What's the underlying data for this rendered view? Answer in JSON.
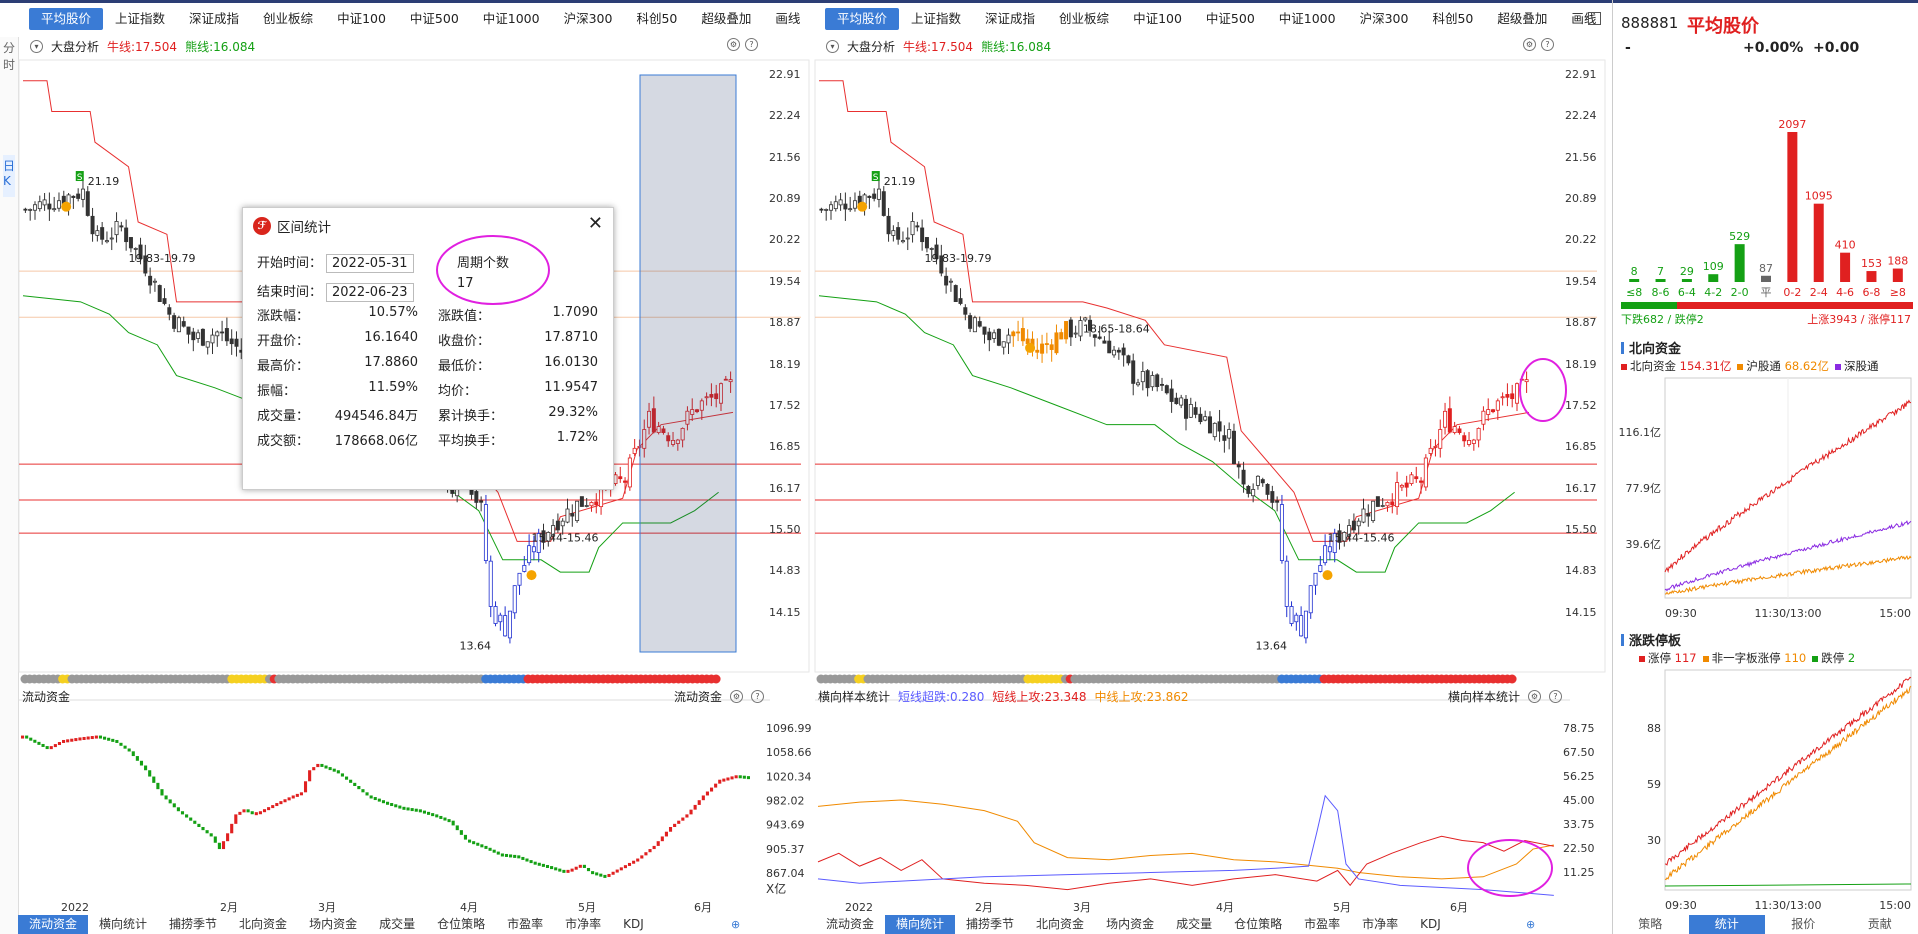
{
  "top_tabs": [
    "平均股价",
    "上证指数",
    "深证成指",
    "创业板综",
    "中证100",
    "中证500",
    "中证1000",
    "沪深300",
    "科创50",
    "超级叠加",
    "画线"
  ],
  "side_labels": [
    "分",
    "时",
    "日",
    "K"
  ],
  "left_chart": {
    "analysis_label": "大盘分析",
    "niu_line": "牛线:17.504",
    "xiong_line": "熊线:16.084",
    "price_ticks": [
      "22.91",
      "22.24",
      "21.56",
      "20.89",
      "20.22",
      "19.54",
      "18.87",
      "18.19",
      "17.52",
      "16.85",
      "16.17",
      "15.50",
      "14.83",
      "14.15"
    ],
    "annotations": {
      "high_label": "21.19",
      "range1": "19.83-19.79",
      "range2": "15.44-15.46",
      "low_label": "13.64"
    }
  },
  "right_chart": {
    "analysis_label": "大盘分析",
    "niu_line": "牛线:17.504",
    "xiong_line": "熊线:16.084",
    "price_ticks": [
      "22.91",
      "22.24",
      "21.56",
      "20.89",
      "20.22",
      "19.54",
      "18.87",
      "18.19",
      "17.52",
      "16.85",
      "16.17",
      "15.50",
      "14.83",
      "14.15"
    ],
    "annotations": {
      "high_label": "21.19",
      "range1": "19.83-19.79",
      "range3": "18.65-18.64",
      "range2": "15.44-15.46",
      "low_label": "13.64"
    }
  },
  "dialog": {
    "title": "区间统计",
    "start_label": "开始时间：",
    "start_value": "2022-05-31",
    "end_label": "结束时间：",
    "end_value": "2022-06-23",
    "period_label": "周期个数",
    "period_value": "17",
    "stats_left": [
      {
        "k": "涨跌幅：",
        "v": "10.57%"
      },
      {
        "k": "开盘价：",
        "v": "16.1640"
      },
      {
        "k": "最高价：",
        "v": "17.8860"
      },
      {
        "k": "振幅：",
        "v": "11.59%"
      },
      {
        "k": "成交量：",
        "v": "494546.84万"
      },
      {
        "k": "成交额：",
        "v": "178668.06亿"
      }
    ],
    "stats_right": [
      {
        "k": "涨跌值：",
        "v": "1.7090"
      },
      {
        "k": "收盘价：",
        "v": "17.8710"
      },
      {
        "k": "最低价：",
        "v": "16.0130"
      },
      {
        "k": "均价：",
        "v": "11.9547"
      },
      {
        "k": "累计换手：",
        "v": "29.32%"
      },
      {
        "k": "平均换手：",
        "v": "1.72%"
      }
    ]
  },
  "left_sub": {
    "title": "流动资金",
    "title_right": "流动资金",
    "ticks": [
      "1096.99",
      "1058.66",
      "1020.34",
      "982.02",
      "943.69",
      "905.37",
      "867.04"
    ],
    "unit": "X亿",
    "months": [
      "2022",
      "2月",
      "3月",
      "4月",
      "5月",
      "6月"
    ]
  },
  "right_sub": {
    "title": "横向样本统计",
    "series_labels": [
      "短线超跌:0.280",
      "短线上攻:23.348",
      "中线上攻:23.862"
    ],
    "title_right": "横向样本统计",
    "ticks": [
      "78.75",
      "67.50",
      "56.25",
      "45.00",
      "33.75",
      "22.50",
      "11.25"
    ],
    "months": [
      "2022",
      "2月",
      "3月",
      "4月",
      "5月",
      "6月"
    ]
  },
  "bottom_tabs_left": [
    "流动资金",
    "横向统计",
    "捕捞季节",
    "北向资金",
    "场内资金",
    "成交量",
    "仓位策略",
    "市盈率",
    "市净率",
    "KDJ"
  ],
  "bottom_tabs_right": [
    "流动资金",
    "横向统计",
    "捕捞季节",
    "北向资金",
    "场内资金",
    "成交量",
    "仓位策略",
    "市盈率",
    "市净率",
    "KDJ"
  ],
  "right_panel": {
    "code": "888881",
    "name": "平均股价",
    "dash": "-",
    "pct": "+0.00%",
    "chg": "+0.00",
    "dist_chart": {
      "type": "bar",
      "categories": [
        "≤8",
        "8-6",
        "6-4",
        "4-2",
        "2-0",
        "平",
        "0-2",
        "2-4",
        "4-6",
        "6-8",
        "≥8"
      ],
      "values": [
        8,
        7,
        29,
        109,
        529,
        87,
        2097,
        1095,
        410,
        153,
        188
      ]
    },
    "down_text": "下跌682 / 跌停2",
    "up_text": "上涨3943 / 涨停117",
    "north": {
      "title": "北向资金",
      "legend": [
        {
          "name": "北向资金",
          "value": "154.31亿",
          "color": "#e02020"
        },
        {
          "name": "沪股通",
          "value": "68.62亿",
          "color": "#f08a00"
        },
        {
          "name": "深股通",
          "value": "",
          "color": "#8a2be2"
        }
      ],
      "ticks": [
        "116.1亿",
        "77.9亿",
        "39.6亿"
      ],
      "xlabels": [
        "09:30",
        "11:30/13:00",
        "15:00"
      ]
    },
    "limit": {
      "title": "涨跌停板",
      "legend": [
        {
          "name": "涨停",
          "value": "117",
          "color": "#e02020"
        },
        {
          "name": "非一字板涨停",
          "value": "110",
          "color": "#f08a00"
        },
        {
          "name": "跌停",
          "value": "2",
          "color": "#14a014"
        }
      ],
      "ticks": [
        "88",
        "59",
        "30"
      ],
      "xlabels": [
        "09:30",
        "11:30/13:00",
        "15:00"
      ]
    },
    "tabs": [
      "策略",
      "统计",
      "报价",
      "贡献"
    ]
  }
}
